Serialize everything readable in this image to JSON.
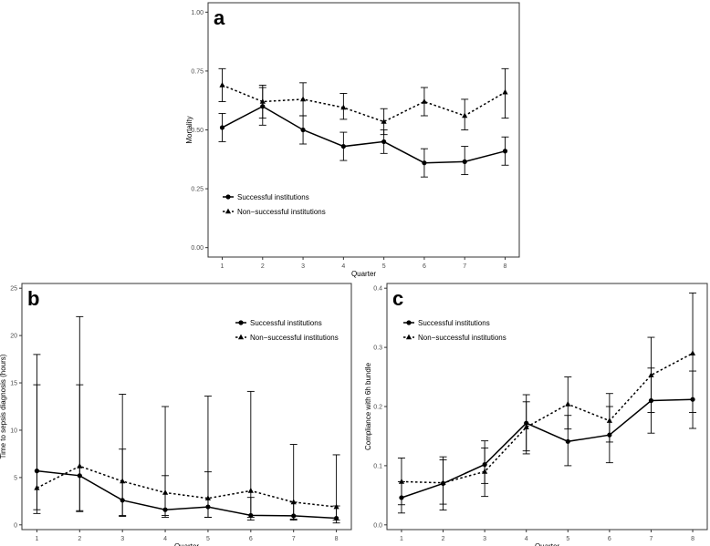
{
  "chart_data": [
    {
      "panel_label": "a",
      "type": "line",
      "title": "",
      "xlabel": "Quarter",
      "ylabel": "Mortality",
      "x": [
        1,
        2,
        3,
        4,
        5,
        6,
        7,
        8
      ],
      "xticks": [
        "1",
        "2",
        "3",
        "4",
        "5",
        "6",
        "7",
        "8"
      ],
      "xlim": [
        0.65,
        8.35
      ],
      "ylim": [
        -0.04,
        1.04
      ],
      "yticks": [
        0,
        0.25,
        0.5,
        0.75,
        1.0
      ],
      "ytick_labels": [
        "0.00",
        "0.25",
        "0.50",
        "0.75",
        "1.00"
      ],
      "grid": false,
      "legend_position": "bottom-left",
      "series": [
        {
          "name": "Successful institutions",
          "line": "solid",
          "marker": "circle",
          "values": [
            0.51,
            0.6,
            0.5,
            0.43,
            0.45,
            0.36,
            0.365,
            0.41
          ],
          "lower": [
            0.45,
            0.52,
            0.44,
            0.37,
            0.4,
            0.3,
            0.31,
            0.35
          ],
          "upper": [
            0.57,
            0.68,
            0.56,
            0.49,
            0.5,
            0.42,
            0.43,
            0.47
          ]
        },
        {
          "name": "Non−successful institutions",
          "line": "dotted",
          "marker": "triangle",
          "values": [
            0.69,
            0.62,
            0.63,
            0.595,
            0.535,
            0.62,
            0.56,
            0.66
          ],
          "lower": [
            0.62,
            0.55,
            0.56,
            0.545,
            0.48,
            0.56,
            0.5,
            0.55
          ],
          "upper": [
            0.76,
            0.69,
            0.7,
            0.655,
            0.59,
            0.68,
            0.63,
            0.76
          ]
        }
      ]
    },
    {
      "panel_label": "b",
      "type": "line",
      "title": "",
      "xlabel": "Quarter",
      "ylabel": "Time to sepsis diagnosis (hours)",
      "x": [
        1,
        2,
        3,
        4,
        5,
        6,
        7,
        8
      ],
      "xticks": [
        "1",
        "2",
        "3",
        "4",
        "5",
        "6",
        "7",
        "8"
      ],
      "xlim": [
        0.65,
        8.35
      ],
      "ylim": [
        -0.5,
        25.5
      ],
      "yticks": [
        0,
        5,
        10,
        15,
        20,
        25
      ],
      "ytick_labels": [
        "0",
        "5",
        "10",
        "15",
        "20",
        "25"
      ],
      "grid": false,
      "legend_position": "top-right",
      "series": [
        {
          "name": "Successful institutions",
          "line": "solid",
          "marker": "circle",
          "values": [
            5.7,
            5.2,
            2.6,
            1.6,
            1.9,
            1.0,
            0.95,
            0.7
          ],
          "lower": [
            1.6,
            1.5,
            1.0,
            1.0,
            0.8,
            0.5,
            0.5,
            0.2
          ],
          "upper": [
            14.8,
            14.8,
            8.0,
            5.2,
            5.6,
            2.9,
            2.4,
            2.0
          ]
        },
        {
          "name": "Non−successful institutions",
          "line": "dotted",
          "marker": "triangle",
          "values": [
            3.9,
            6.2,
            4.6,
            3.4,
            2.8,
            3.6,
            2.4,
            1.9
          ],
          "lower": [
            1.2,
            1.4,
            0.9,
            0.8,
            0.8,
            0.8,
            0.6,
            0.5
          ],
          "upper": [
            18.0,
            22.0,
            13.8,
            12.5,
            13.6,
            14.1,
            8.5,
            7.4
          ]
        }
      ]
    },
    {
      "panel_label": "c",
      "type": "line",
      "title": "",
      "xlabel": "Quarter",
      "ylabel": "Compliance with 6h bundle",
      "x": [
        1,
        2,
        3,
        4,
        5,
        6,
        7,
        8
      ],
      "xticks": [
        "1",
        "2",
        "3",
        "4",
        "5",
        "6",
        "7",
        "8"
      ],
      "xlim": [
        0.65,
        8.35
      ],
      "ylim": [
        -0.008,
        0.408
      ],
      "yticks": [
        0,
        0.1,
        0.2,
        0.3,
        0.4
      ],
      "ytick_labels": [
        "0.0",
        "0.1",
        "0.2",
        "0.3",
        "0.4"
      ],
      "grid": false,
      "legend_position": "top-left",
      "series": [
        {
          "name": "Successful institutions",
          "line": "solid",
          "marker": "circle",
          "values": [
            0.046,
            0.07,
            0.102,
            0.172,
            0.141,
            0.152,
            0.21,
            0.212
          ],
          "lower": [
            0.02,
            0.025,
            0.07,
            0.125,
            0.1,
            0.105,
            0.155,
            0.163
          ],
          "upper": [
            0.073,
            0.115,
            0.142,
            0.22,
            0.185,
            0.2,
            0.265,
            0.26
          ]
        },
        {
          "name": "Non−successful institutions",
          "line": "dotted",
          "marker": "triangle",
          "values": [
            0.073,
            0.071,
            0.09,
            0.165,
            0.204,
            0.176,
            0.253,
            0.29
          ],
          "lower": [
            0.034,
            0.035,
            0.048,
            0.12,
            0.162,
            0.14,
            0.19,
            0.19
          ],
          "upper": [
            0.113,
            0.11,
            0.13,
            0.208,
            0.25,
            0.222,
            0.317,
            0.392
          ]
        }
      ]
    }
  ]
}
